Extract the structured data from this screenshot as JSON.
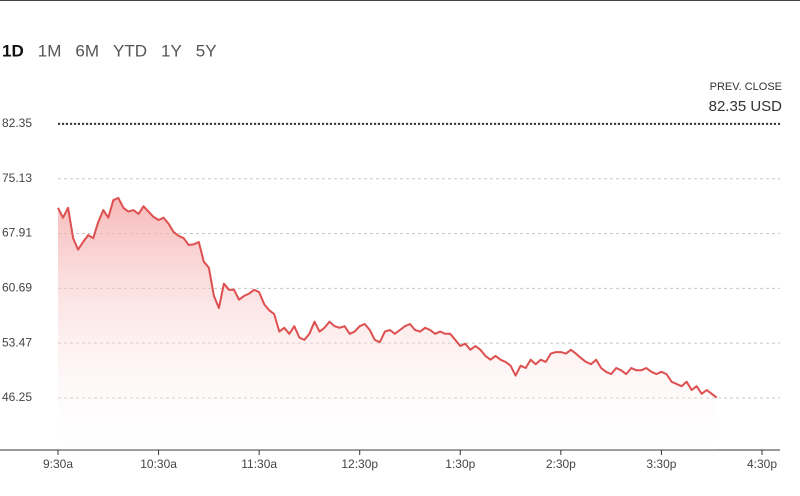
{
  "tabs": [
    "1D",
    "1M",
    "6M",
    "YTD",
    "1Y",
    "5Y"
  ],
  "active_tab": 0,
  "chart_data": {
    "type": "area",
    "prev_close": {
      "title": "PREV. CLOSE",
      "value": 82.35,
      "label": "82.35 USD",
      "color": "#333333"
    },
    "x": [
      0,
      3,
      6,
      9,
      12,
      15,
      18,
      21,
      24,
      27,
      30,
      33,
      36,
      39,
      42,
      45,
      48,
      51,
      54,
      57,
      60,
      63,
      66,
      69,
      72,
      75,
      78,
      81,
      84,
      87,
      90,
      93,
      96,
      99,
      102,
      105,
      108,
      111,
      114,
      117,
      120,
      123,
      126,
      129,
      132,
      135,
      138,
      141,
      144,
      147,
      150,
      153,
      156,
      159,
      162,
      165,
      168,
      171,
      174,
      177,
      180,
      183,
      186,
      189,
      192,
      195,
      198,
      201,
      204,
      207,
      210,
      213,
      216,
      219,
      222,
      225,
      228,
      231,
      234,
      237,
      240,
      243,
      246,
      249,
      252,
      255,
      258,
      261,
      264,
      267,
      270,
      273,
      276,
      279,
      282,
      285,
      288,
      291,
      294,
      297,
      300,
      303,
      306,
      309,
      312,
      315,
      318,
      321,
      324,
      327,
      330,
      333,
      336,
      339,
      342,
      345,
      348,
      351,
      354,
      357,
      360,
      363,
      366,
      369,
      372,
      375,
      378,
      381,
      384,
      387,
      390,
      393
    ],
    "series": [
      {
        "color": "#de4f4f",
        "values": [
          71.3,
          70.0,
          71.3,
          67.3,
          65.8,
          66.8,
          67.7,
          67.3,
          69.4,
          71.0,
          70.0,
          72.3,
          72.6,
          71.3,
          70.8,
          71.0,
          70.5,
          71.5,
          70.8,
          70.1,
          69.7,
          70.0,
          69.2,
          68.1,
          67.6,
          67.3,
          66.4,
          66.5,
          66.8,
          64.2,
          63.4,
          59.7,
          58.1,
          61.3,
          60.5,
          60.5,
          59.2,
          59.7,
          60.0,
          60.5,
          60.2,
          58.6,
          57.8,
          57.3,
          55.0,
          55.5,
          54.7,
          55.7,
          54.2,
          53.9,
          54.7,
          56.3,
          55.0,
          55.5,
          56.3,
          55.7,
          55.5,
          55.7,
          54.7,
          55.0,
          55.7,
          56.0,
          55.2,
          53.9,
          53.6,
          55.0,
          55.2,
          54.7,
          55.2,
          55.7,
          56.0,
          55.2,
          55.0,
          55.5,
          55.2,
          54.7,
          55.0,
          54.7,
          54.7,
          53.9,
          53.1,
          53.4,
          52.6,
          53.1,
          52.6,
          51.8,
          51.3,
          51.8,
          51.3,
          51.0,
          50.5,
          49.2,
          50.5,
          50.2,
          51.3,
          50.7,
          51.3,
          51.0,
          52.1,
          52.3,
          52.3,
          52.1,
          52.6,
          52.1,
          51.5,
          51.0,
          50.7,
          51.3,
          50.2,
          49.7,
          49.4,
          50.2,
          49.9,
          49.4,
          50.2,
          49.9,
          49.9,
          50.2,
          49.7,
          49.4,
          49.7,
          49.4,
          48.4,
          48.1,
          47.8,
          48.4,
          47.3,
          47.8,
          46.8,
          47.3,
          46.8,
          46.3
        ]
      }
    ],
    "xlim": [
      0,
      420
    ],
    "xticks": [
      {
        "value": 0,
        "label": "9:30a"
      },
      {
        "value": 60,
        "label": "10:30a"
      },
      {
        "value": 120,
        "label": "11:30a"
      },
      {
        "value": 180,
        "label": "12:30p"
      },
      {
        "value": 240,
        "label": "1:30p"
      },
      {
        "value": 300,
        "label": "2:30p"
      },
      {
        "value": 360,
        "label": "3:30p"
      },
      {
        "value": 420,
        "label": "4:30p"
      }
    ],
    "ylim": [
      39.4,
      85.5
    ],
    "yticks": [
      46.25,
      53.47,
      60.69,
      67.91,
      75.13,
      82.35
    ],
    "grid": true
  }
}
